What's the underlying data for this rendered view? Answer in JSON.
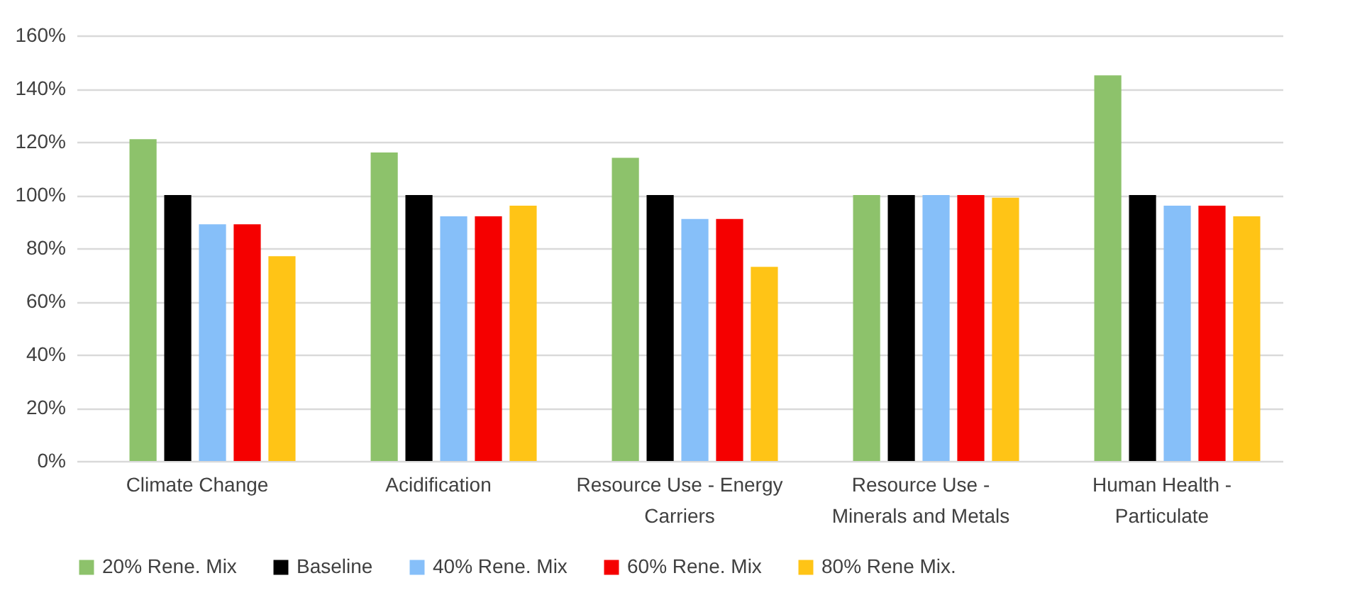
{
  "chart_data": {
    "type": "bar",
    "categories": [
      "Climate Change",
      "Acidification",
      "Resource Use - Energy Carriers",
      "Resource Use - Minerals and Metals",
      "Human Health - Particulate"
    ],
    "series": [
      {
        "name": "20% Rene. Mix",
        "color": "#8dc26b",
        "values": [
          121,
          116,
          114,
          100,
          145
        ]
      },
      {
        "name": "Baseline",
        "color": "#000000",
        "values": [
          100,
          100,
          100,
          100,
          100
        ]
      },
      {
        "name": "40% Rene. Mix",
        "color": "#86bff9",
        "values": [
          89,
          92,
          91,
          100,
          96
        ]
      },
      {
        "name": "60% Rene. Mix",
        "color": "#f50000",
        "values": [
          89,
          92,
          91,
          100,
          96
        ]
      },
      {
        "name": "80% Rene Mix.",
        "color": "#ffc416",
        "values": [
          77,
          96,
          73,
          99,
          92
        ]
      }
    ],
    "ylim": [
      0,
      160
    ],
    "yticks": [
      {
        "value": 0,
        "label": "0%"
      },
      {
        "value": 20,
        "label": "20%"
      },
      {
        "value": 40,
        "label": "40%"
      },
      {
        "value": 60,
        "label": "60%"
      },
      {
        "value": 80,
        "label": "80%"
      },
      {
        "value": 100,
        "label": "100%"
      },
      {
        "value": 120,
        "label": "120%"
      },
      {
        "value": 140,
        "label": "140%"
      },
      {
        "value": 160,
        "label": "160%"
      }
    ],
    "grid": "y",
    "legend": "bottom"
  }
}
